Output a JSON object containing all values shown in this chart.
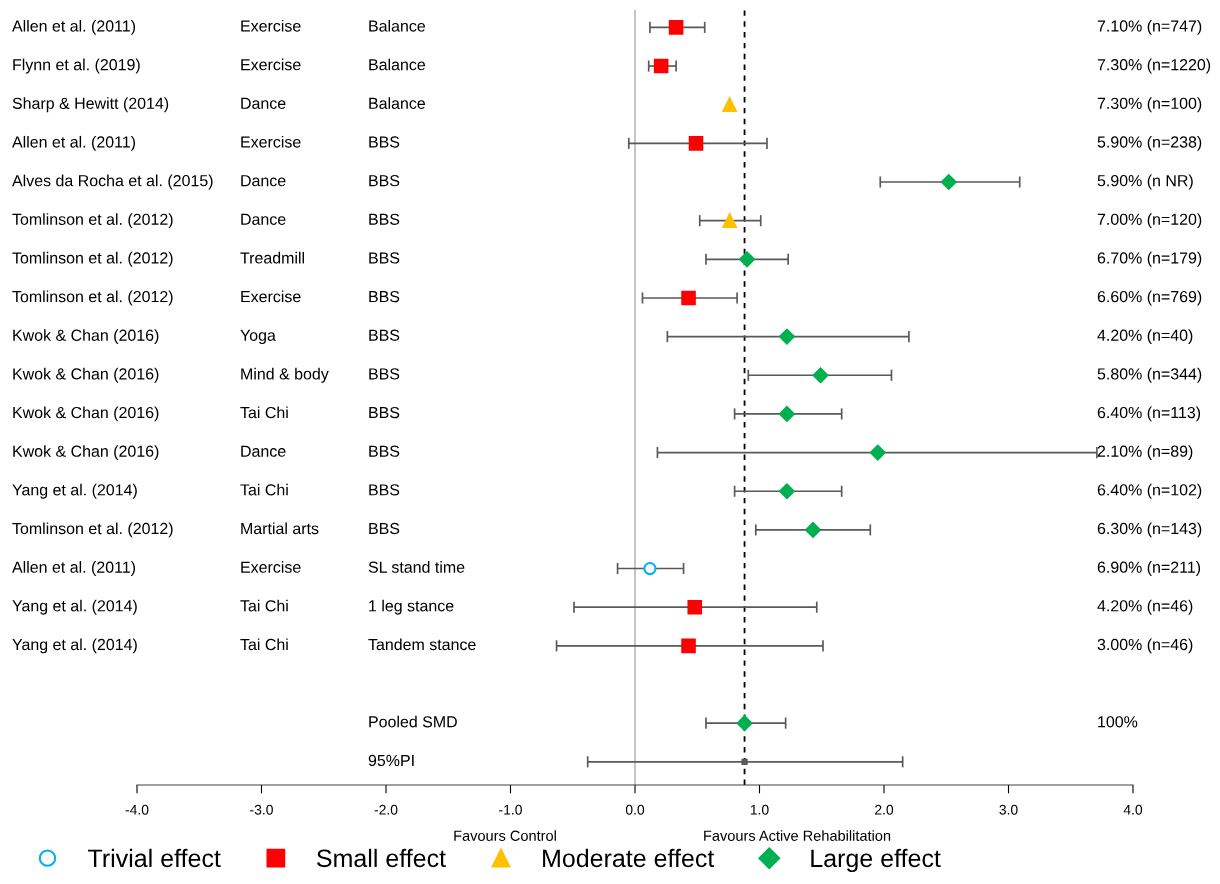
{
  "chart_data": {
    "type": "scatter",
    "orientation": "horizontal",
    "categories": [
      "Allen et al. (2011)",
      "Flynn et al. (2019)",
      "Sharp & Hewitt (2014)",
      "Allen et al. (2011)",
      "Alves da Rocha et al. (2015)",
      "Tomlinson et al. (2012)",
      "Tomlinson et al. (2012)",
      "Tomlinson et al. (2012)",
      "Kwok & Chan (2016)",
      "Kwok & Chan (2016)",
      "Kwok & Chan (2016)",
      "Kwok & Chan (2016)",
      "Yang et al. (2014)",
      "Tomlinson et al. (2012)",
      "Allen et al. (2011)",
      "Yang et al. (2014)",
      "Yang et al. (2014)",
      null,
      null,
      null
    ],
    "series": [
      {
        "name": "Trivial effect",
        "color": "#00b0f0",
        "marker": "circle",
        "values": [
          null,
          null,
          null,
          null,
          null,
          null,
          null,
          null,
          null,
          null,
          null,
          null,
          null,
          null,
          0.12,
          null,
          null,
          null,
          null,
          null
        ],
        "errors": [
          null,
          null,
          null,
          null,
          null,
          null,
          null,
          null,
          null,
          null,
          null,
          null,
          null,
          null,
          [
            -0.14,
            0.39
          ],
          null,
          null,
          null,
          null,
          null
        ]
      },
      {
        "name": "Small effect",
        "color": "#ff0000",
        "marker": "square",
        "values": [
          0.33,
          0.21,
          null,
          0.49,
          null,
          null,
          null,
          0.43,
          null,
          null,
          null,
          null,
          null,
          null,
          null,
          0.48,
          0.43,
          null,
          null,
          null
        ],
        "errors": [
          [
            0.12,
            0.56
          ],
          [
            0.11,
            0.33
          ],
          null,
          [
            -0.05,
            1.06
          ],
          null,
          null,
          null,
          [
            0.06,
            0.82
          ],
          null,
          null,
          null,
          null,
          null,
          null,
          null,
          [
            -0.49,
            1.46
          ],
          [
            -0.63,
            1.51
          ],
          null,
          null,
          null
        ]
      },
      {
        "name": "Moderate effect",
        "color": "#ffc000",
        "marker": "triangle",
        "values": [
          null,
          null,
          0.76,
          null,
          null,
          0.76,
          null,
          null,
          null,
          null,
          null,
          null,
          null,
          null,
          null,
          null,
          null,
          null,
          null,
          null
        ],
        "errors": [
          null,
          null,
          null,
          null,
          null,
          [
            0.52,
            1.01
          ],
          null,
          null,
          null,
          null,
          null,
          null,
          null,
          null,
          null,
          null,
          null,
          null,
          null,
          null
        ]
      },
      {
        "name": "Large effect",
        "color": "#00b050",
        "marker": "diamond",
        "values": [
          null,
          null,
          null,
          null,
          2.52,
          null,
          0.9,
          null,
          1.22,
          1.49,
          1.22,
          1.95,
          1.22,
          1.43,
          null,
          null,
          null,
          null,
          0.88,
          null
        ],
        "errors": [
          null,
          null,
          null,
          null,
          [
            1.97,
            3.09
          ],
          null,
          [
            0.57,
            1.23
          ],
          null,
          [
            0.26,
            2.2
          ],
          [
            0.91,
            2.06
          ],
          [
            0.8,
            1.66
          ],
          [
            0.18,
            3.71
          ],
          [
            0.8,
            1.66
          ],
          [
            0.97,
            1.89
          ],
          null,
          null,
          null,
          null,
          [
            0.57,
            1.21
          ],
          null
        ]
      },
      {
        "color": "#595959",
        "marker": "square",
        "values": [
          null,
          null,
          null,
          null,
          null,
          null,
          null,
          null,
          null,
          null,
          null,
          null,
          null,
          null,
          null,
          null,
          null,
          null,
          null,
          0.88
        ],
        "errors": [
          null,
          null,
          null,
          null,
          null,
          null,
          null,
          null,
          null,
          null,
          null,
          null,
          null,
          null,
          null,
          null,
          null,
          null,
          null,
          [
            -0.38,
            2.15
          ]
        ]
      }
    ],
    "annotations": [
      "Exercise",
      "Exercise",
      "Dance",
      "Exercise",
      "Dance",
      "Dance",
      "Treadmill",
      "Exercise",
      "Yoga",
      "Mind & body",
      "Tai Chi",
      "Dance",
      "Tai Chi",
      "Martial arts",
      "Exercise",
      "Tai Chi",
      "Tai Chi",
      "Balance",
      "Balance",
      "Balance",
      "BBS",
      "BBS",
      "BBS",
      "BBS",
      "BBS",
      "BBS",
      "BBS",
      "BBS",
      "BBS",
      "BBS",
      "BBS",
      "SL stand time",
      "1 leg stance",
      "Tandem stance",
      "Pooled SMD",
      "95%PI",
      "7.10% (n=747)",
      "7.30% (n=1220)",
      "7.30% (n=100)",
      "5.90% (n=238)",
      "5.90% (n NR)",
      "7.00% (n=120)",
      "6.70% (n=179)",
      "6.60% (n=769)",
      "4.20% (n=40)",
      "5.80% (n=344)",
      "6.40% (n=113)",
      "2.10% (n=89)",
      "6.40% (n=102)",
      "6.30% (n=143)",
      "6.90% (n=211)",
      "4.20% (n=46)",
      "3.00% (n=46)",
      "100%",
      "Favours Control",
      "Favours Active Rehabilitation"
    ],
    "ref_lines": [
      {
        "axis": "x",
        "value": 0,
        "color": "#bfbfbf",
        "line_style": "solid"
      },
      {
        "axis": "x",
        "value": 0.88,
        "color": "#000000",
        "line_style": "dashed"
      }
    ],
    "xlim": [
      -4,
      4
    ],
    "xticks": [
      {
        "value": -4,
        "label": "-4.0"
      },
      {
        "value": -3,
        "label": "-3.0"
      },
      {
        "value": -2,
        "label": "-2.0"
      },
      {
        "value": -1,
        "label": "-1.0"
      },
      {
        "value": 0,
        "label": "0.0"
      },
      {
        "value": 1,
        "label": "1.0"
      },
      {
        "value": 2,
        "label": "2.0"
      },
      {
        "value": 3,
        "label": "3.0"
      },
      {
        "value": 4,
        "label": "4.0"
      }
    ],
    "legend": "bottom",
    "grid": false
  }
}
